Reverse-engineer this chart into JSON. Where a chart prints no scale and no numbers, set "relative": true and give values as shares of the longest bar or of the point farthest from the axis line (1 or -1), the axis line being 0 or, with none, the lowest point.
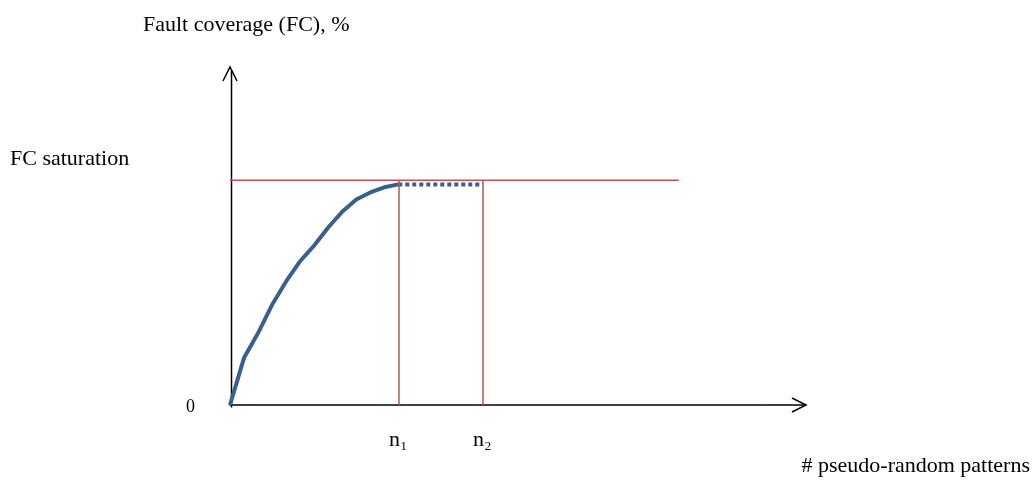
{
  "chart_data": {
    "type": "line",
    "relative": true,
    "xlabel": "# pseudo-random patterns",
    "categories": [
      null,
      null,
      null,
      null,
      null,
      null,
      null,
      null,
      null,
      null,
      null,
      null,
      "n₁",
      null,
      null,
      null,
      null,
      null,
      "n₂",
      null,
      null,
      null,
      null,
      null,
      null,
      null,
      null,
      null,
      null,
      null,
      null,
      null,
      null,
      null,
      null,
      null,
      null,
      null,
      null,
      null,
      null,
      null
    ],
    "series": [
      {
        "color": "#3a5f8f",
        "line_style": "solid",
        "values": [
          0,
          0.21,
          0.32,
          0.446,
          0.55,
          0.64,
          0.71,
          0.79,
          0.86,
          0.915,
          0.946,
          0.969,
          0.982,
          null,
          null,
          null,
          null,
          null,
          null,
          null,
          null,
          null,
          null,
          null,
          null,
          null,
          null,
          null,
          null,
          null,
          null,
          null,
          null,
          null,
          null,
          null,
          null,
          null,
          null,
          null,
          null,
          null
        ]
      },
      {
        "color": "#3a5f8f",
        "line_style": "dotted",
        "values": [
          null,
          null,
          null,
          null,
          null,
          null,
          null,
          null,
          null,
          null,
          null,
          null,
          0.982,
          0.982,
          0.982,
          0.982,
          0.982,
          0.982,
          0.982,
          null,
          null,
          null,
          null,
          null,
          null,
          null,
          null,
          null,
          null,
          null,
          null,
          null,
          null,
          null,
          null,
          null,
          null,
          null,
          null,
          null,
          null,
          null
        ]
      },
      {
        "color": "#c0504d",
        "line_style": "solid",
        "values": [
          1,
          1,
          1,
          1,
          1,
          1,
          1,
          1,
          1,
          1,
          1,
          1,
          1,
          1,
          1,
          1,
          1,
          1,
          1,
          1,
          1,
          1,
          1,
          1,
          1,
          1,
          1,
          1,
          1,
          1,
          1,
          1,
          1,
          null,
          null,
          null,
          null,
          null,
          null,
          null,
          null,
          null
        ]
      }
    ],
    "ref_lines": [
      {
        "axis": "x",
        "value": "n₁",
        "color": "#c0504d"
      },
      {
        "axis": "x",
        "value": "n₂",
        "color": "#c0504d"
      }
    ],
    "annotations": [
      "Fault coverage (FC), %",
      "FC saturation",
      "0"
    ],
    "marker": "none",
    "grid": false
  }
}
